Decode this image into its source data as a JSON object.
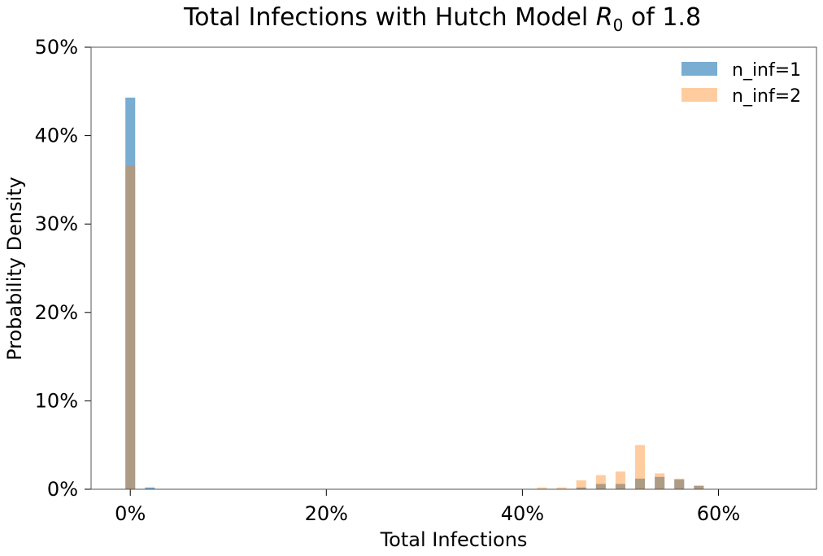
{
  "chart_data": {
    "type": "bar",
    "title": {
      "prefix": "Total Infections with Hutch Model ",
      "symbol": "R",
      "subscript": "0",
      "suffix": " of 1.8"
    },
    "xlabel": "Total Infections",
    "ylabel": "Probability Density",
    "xlim": [
      -0.04,
      0.7
    ],
    "ylim": [
      0,
      0.5
    ],
    "xticks": [
      0,
      0.2,
      0.4,
      0.6
    ],
    "xtick_labels": [
      "0%",
      "20%",
      "40%",
      "60%"
    ],
    "yticks": [
      0,
      0.1,
      0.2,
      0.3,
      0.4,
      0.5
    ],
    "ytick_labels": [
      "0%",
      "10%",
      "20%",
      "30%",
      "40%",
      "50%"
    ],
    "bar_width": 0.01,
    "legend_position": "top-right",
    "grid": false,
    "series": [
      {
        "name": "n_inf=1",
        "color": "#1f77b4",
        "opacity": 0.6,
        "x": [
          0.0,
          0.02,
          0.46,
          0.48,
          0.5,
          0.52,
          0.54,
          0.56,
          0.58
        ],
        "values": [
          0.443,
          0.002,
          0.002,
          0.006,
          0.006,
          0.012,
          0.014,
          0.011,
          0.004
        ]
      },
      {
        "name": "n_inf=2",
        "color": "#ff7f0e",
        "opacity": 0.4,
        "x": [
          0.0,
          0.42,
          0.44,
          0.46,
          0.48,
          0.5,
          0.52,
          0.54,
          0.56,
          0.58
        ],
        "values": [
          0.366,
          0.002,
          0.002,
          0.01,
          0.016,
          0.02,
          0.05,
          0.018,
          0.012,
          0.004
        ]
      }
    ]
  }
}
